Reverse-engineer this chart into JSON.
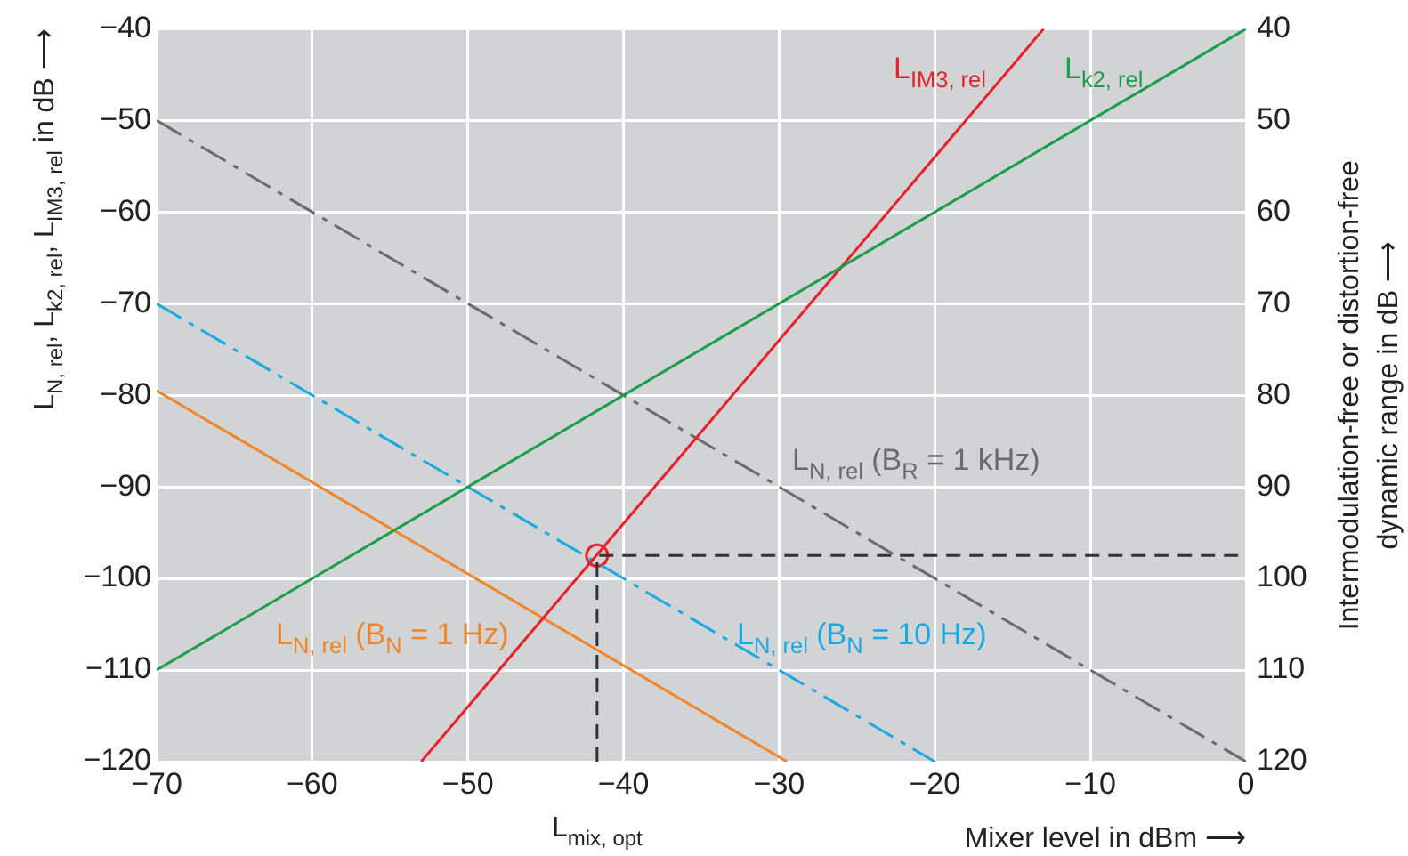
{
  "chart_data": {
    "type": "line",
    "xlabel": "Mixer level in dBm ⟶",
    "ylabel": "L$_{N, rel}$, L$_{k2, rel}$, L$_{IM3, rel}$ in dB ⟶",
    "y2label": "Intermodulation-free or distortion-free\ndynamic range in dB ⟶",
    "xlim": [
      -70,
      0
    ],
    "xticks": [
      -70,
      -60,
      -50,
      -40,
      -30,
      -20,
      -10,
      0
    ],
    "ylim": [
      -120,
      -40
    ],
    "yticks": [
      -120,
      -110,
      -100,
      -90,
      -80,
      -70,
      -60,
      -50,
      -40
    ],
    "y2lim": [
      120,
      40
    ],
    "y2ticks": [
      40,
      50,
      60,
      70,
      80,
      90,
      100,
      110,
      120
    ],
    "grid": true,
    "legend": false,
    "marker": "none",
    "line_style": "solid",
    "series": [
      {
        "name": "L$_{k2, rel}$",
        "color": "#1a9e4b",
        "x": [
          -70,
          0
        ],
        "values": [
          -110,
          -40
        ]
      },
      {
        "name": "L$_{IM3, rel}$",
        "color": "#e8202a",
        "x": [
          -53,
          -13
        ],
        "values": [
          -120,
          -40
        ]
      },
      {
        "name": "L$_{N, rel}$ (B$_{R}$ = 1 kHz)",
        "color": "#6b6b6b",
        "line_style": "dashdot",
        "x": [
          -70,
          0
        ],
        "values": [
          -50,
          -120
        ]
      },
      {
        "name": "L$_{N, rel}$ (B$_{N}$ = 10 Hz)",
        "color": "#19a9e3",
        "line_style": "dashdot",
        "x": [
          -70,
          -20
        ],
        "values": [
          -70,
          -120
        ]
      },
      {
        "name": "L$_{N, rel}$ (B$_{N}$ = 1 Hz)",
        "color": "#f0862a",
        "x": [
          -70,
          -29.5
        ],
        "values": [
          -79.5,
          -120
        ]
      },
      {
        "color": "#333333",
        "line_style": "dashed",
        "x": [
          -41.7,
          -41.7,
          0
        ],
        "values": [
          -120,
          -97.5,
          -97.5
        ]
      },
      {
        "type": "scatter",
        "color": "#e8202a",
        "marker": "circle",
        "x": [
          -41.7
        ],
        "values": [
          -97.5
        ]
      }
    ],
    "annotations": [
      {
        "text": "L$_{mix, opt}$",
        "x": -41.7,
        "y": -120
      }
    ]
  }
}
